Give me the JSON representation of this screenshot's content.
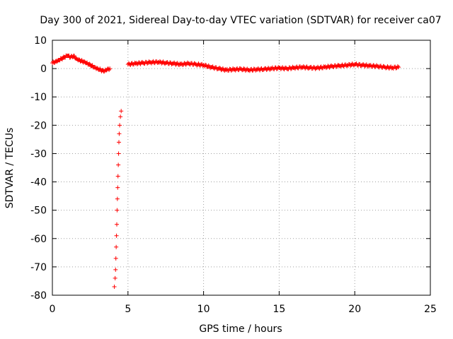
{
  "chart_data": {
    "type": "scatter",
    "title": "Day 300 of 2021, Sidereal Day-to-day VTEC variation (SDTVAR) for receiver ca07",
    "xlabel": "GPS time / hours",
    "ylabel": "SDTVAR / TECUs",
    "xlim": [
      0,
      25
    ],
    "ylim": [
      -80,
      10
    ],
    "xticks": [
      0,
      5,
      10,
      15,
      20,
      25
    ],
    "xtick_labels": [
      "0",
      "5",
      "10",
      "15",
      "20",
      "25"
    ],
    "yticks": [
      10,
      0,
      -10,
      -20,
      -30,
      -40,
      -50,
      -60,
      -70,
      -80
    ],
    "ytick_labels": [
      "10",
      "0",
      "-10",
      "-20",
      "-30",
      "-40",
      "-50",
      "-60",
      "-70",
      "-80"
    ],
    "grid": true,
    "marker": "+",
    "series": [
      {
        "name": "ca07",
        "color": "#ff0000",
        "segments": [
          {
            "label": "early",
            "x": [
              0.0,
              0.2,
              0.4,
              0.6,
              0.8,
              1.0,
              1.2,
              1.4,
              1.6,
              1.8,
              2.0,
              2.2,
              2.4,
              2.6,
              2.8,
              3.0,
              3.2,
              3.4,
              3.6,
              3.8
            ],
            "y": [
              2.0,
              2.5,
              3.0,
              3.5,
              4.0,
              4.5,
              4.0,
              4.5,
              3.5,
              3.0,
              2.5,
              2.0,
              1.5,
              1.0,
              0.5,
              0.0,
              -0.5,
              -1.0,
              -0.5,
              0.0
            ]
          },
          {
            "label": "dropout",
            "x": [
              4.1,
              4.15,
              4.18,
              4.2,
              4.22,
              4.24,
              4.26,
              4.28,
              4.3,
              4.32,
              4.34,
              4.36,
              4.38,
              4.4,
              4.42,
              4.45,
              4.5,
              4.55
            ],
            "y": [
              -77,
              -74,
              -71,
              -67,
              -63,
              -59,
              -55,
              -50,
              -46,
              -42,
              -38,
              -34,
              -30,
              -26,
              -23,
              -20,
              -17,
              -15
            ]
          },
          {
            "label": "main",
            "x": [
              5.0,
              5.5,
              6.0,
              6.5,
              7.0,
              7.5,
              8.0,
              8.5,
              9.0,
              9.5,
              10.0,
              10.5,
              11.0,
              11.5,
              12.0,
              12.5,
              13.0,
              13.5,
              14.0,
              14.5,
              15.0,
              15.5,
              16.0,
              16.5,
              17.0,
              17.5,
              18.0,
              18.5,
              19.0,
              19.5,
              20.0,
              20.5,
              21.0,
              21.5,
              22.0,
              22.5,
              22.9
            ],
            "y": [
              1.5,
              1.8,
              2.0,
              2.2,
              2.3,
              2.0,
              1.8,
              1.5,
              1.8,
              1.5,
              1.2,
              0.5,
              0.0,
              -0.5,
              -0.3,
              -0.2,
              -0.5,
              -0.3,
              -0.2,
              0.0,
              0.2,
              0.0,
              0.3,
              0.5,
              0.3,
              0.2,
              0.5,
              0.8,
              1.0,
              1.2,
              1.5,
              1.2,
              1.0,
              0.8,
              0.5,
              0.3,
              0.5
            ]
          }
        ]
      }
    ]
  }
}
